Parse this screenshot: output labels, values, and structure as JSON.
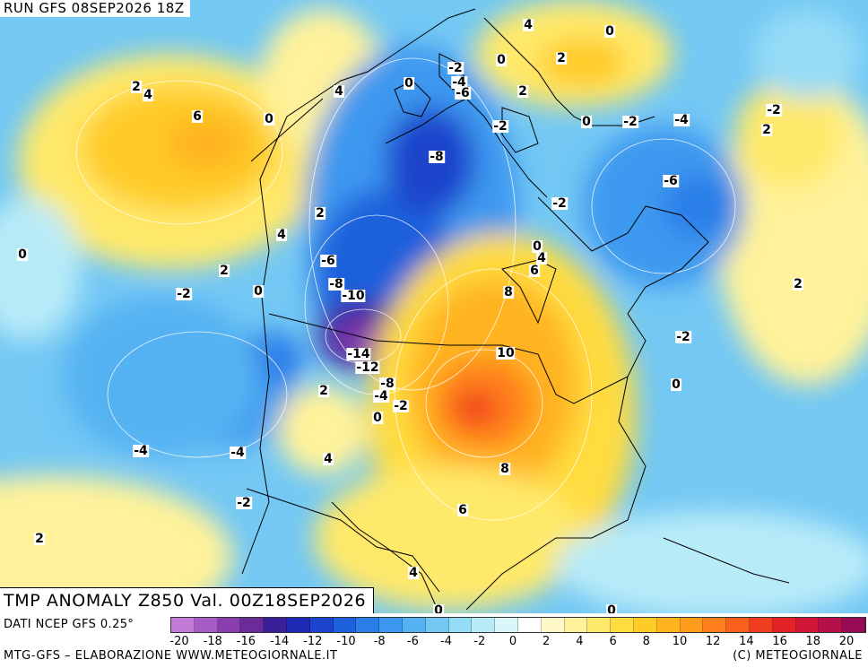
{
  "run_label": "RUN GFS 08SEP2026 18Z",
  "title": "TMP ANOMALY Z850 Val. 00Z18SEP2026",
  "source": "DATI NCEP GFS 0.25°",
  "credit_left": "MTG-GFS – ELABORAZIONE WWW.METEOGIORNALE.IT",
  "credit_right": "(C) METEOGIORNALE",
  "colorbar": {
    "colors": [
      "#c27bd6",
      "#a55cc4",
      "#8a3fae",
      "#6b2c99",
      "#3a1f9a",
      "#1f2ab5",
      "#1c44cc",
      "#1f60dc",
      "#2a7ee8",
      "#3c98ef",
      "#55b2f2",
      "#73c8f4",
      "#95dcf6",
      "#b8ebf8",
      "#d9f6fb",
      "#ffffff",
      "#fff9c8",
      "#fff29a",
      "#ffe96a",
      "#ffdc3f",
      "#ffcb26",
      "#ffb420",
      "#ff9c1e",
      "#ff7f1c",
      "#f9601c",
      "#ef3d1e",
      "#e32225",
      "#cf1637",
      "#b4104a",
      "#970b55"
    ],
    "ticks": [
      "-20",
      "-18",
      "-16",
      "-14",
      "-12",
      "-10",
      "-8",
      "-6",
      "-4",
      "-2",
      "0",
      "2",
      "4",
      "6",
      "8",
      "10",
      "12",
      "14",
      "16",
      "18",
      "20"
    ]
  },
  "contour_labels": [
    {
      "text": "2"
    },
    {
      "text": "4"
    },
    {
      "text": "6"
    },
    {
      "text": "0"
    },
    {
      "text": "4"
    },
    {
      "text": "2"
    },
    {
      "text": "4"
    },
    {
      "text": "0"
    },
    {
      "text": "2"
    },
    {
      "text": "0"
    },
    {
      "text": "-2"
    },
    {
      "text": "-6"
    },
    {
      "text": "-8"
    },
    {
      "text": "-10"
    },
    {
      "text": "-14"
    },
    {
      "text": "-12"
    },
    {
      "text": "-8"
    },
    {
      "text": "-4"
    },
    {
      "text": "-2"
    },
    {
      "text": "0"
    },
    {
      "text": "2"
    },
    {
      "text": "4"
    },
    {
      "text": "-4"
    },
    {
      "text": "-4"
    },
    {
      "text": "-2"
    },
    {
      "text": "2"
    },
    {
      "text": "4"
    },
    {
      "text": "0"
    },
    {
      "text": "-2"
    },
    {
      "text": "-4"
    },
    {
      "text": "-6"
    },
    {
      "text": "0"
    },
    {
      "text": "-8"
    },
    {
      "text": "4"
    },
    {
      "text": "0"
    },
    {
      "text": "2"
    },
    {
      "text": "2"
    },
    {
      "text": "-2"
    },
    {
      "text": "0"
    },
    {
      "text": "-2"
    },
    {
      "text": "-4"
    },
    {
      "text": "-2"
    },
    {
      "text": "2"
    },
    {
      "text": "-6"
    },
    {
      "text": "-2"
    },
    {
      "text": "0"
    },
    {
      "text": "4"
    },
    {
      "text": "6"
    },
    {
      "text": "8"
    },
    {
      "text": "10"
    },
    {
      "text": "8"
    },
    {
      "text": "6"
    },
    {
      "text": "2"
    },
    {
      "text": "-2"
    },
    {
      "text": "0"
    },
    {
      "text": "0"
    },
    {
      "text": "0"
    }
  ]
}
